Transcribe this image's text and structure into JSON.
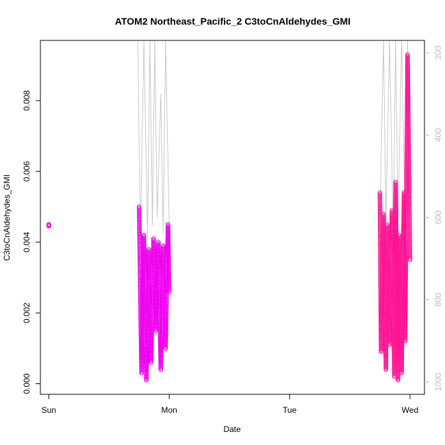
{
  "chart_data": {
    "type": "scatter",
    "title": "ATOM2 Northeast_Pacific_2 C3toCnAldehydes_GMI",
    "xlabel": "Date",
    "ylabel": "C3toCnAldehydes_GMI",
    "x_ticks": [
      "Sun",
      "Mon",
      "Tue",
      "Wed"
    ],
    "y_ticks": [
      "0.000",
      "0.002",
      "0.004",
      "0.006",
      "0.008"
    ],
    "y_tick_values": [
      0,
      0.002,
      0.004,
      0.006,
      0.008
    ],
    "y_range": [
      -0.0003,
      0.0097
    ],
    "x_range_days": [
      -0.07,
      3.12
    ],
    "right_axis": {
      "ticks": [
        "200",
        "400",
        "600",
        "800",
        "1000"
      ],
      "tick_values": [
        200,
        400,
        600,
        800,
        1000
      ],
      "range": [
        1030,
        170
      ],
      "color": "#bdbdbd"
    },
    "grid": false,
    "legend": "none",
    "colors": {
      "marker_first": "#ee00ee",
      "marker_second": "#ff1493",
      "pressure_line": "#c8c8c8"
    },
    "segments": [
      {
        "x": [
          0.0
        ],
        "y": [
          0.0045
        ]
      },
      {
        "x": [
          0.0,
          0.0
        ],
        "y": [
          0.00445,
          0.0045
        ]
      },
      {
        "x": [
          0.75,
          0.77,
          0.79,
          0.81,
          0.83,
          0.85,
          0.87,
          0.89,
          0.91,
          0.93,
          0.95,
          0.97,
          0.99,
          1.0
        ],
        "y": [
          0.005,
          0.0003,
          0.0042,
          0.0001,
          0.0038,
          0.0006,
          0.0041,
          0.0015,
          0.004,
          0.0004,
          0.0039,
          0.001,
          0.0045,
          0.0026
        ]
      },
      {
        "x": [
          2.75,
          2.76,
          2.78,
          2.8,
          2.81,
          2.83,
          2.85,
          2.87,
          2.88,
          2.9,
          2.91,
          2.93,
          2.95,
          2.96,
          2.98,
          3.0
        ],
        "y": [
          0.0054,
          0.0009,
          0.0048,
          0.0004,
          0.0045,
          0.0011,
          0.0049,
          0.0002,
          0.0057,
          0.0001,
          0.0042,
          0.0003,
          0.0054,
          0.0012,
          0.0093,
          0.0035
        ]
      }
    ],
    "pressure_series": {
      "x": [
        0.74,
        0.76,
        0.79,
        0.82,
        0.84,
        0.86,
        0.88,
        0.9,
        0.93,
        0.95,
        0.97,
        1.0,
        2.75,
        2.78,
        2.8,
        2.83,
        2.86,
        2.88,
        2.9,
        2.93,
        2.96,
        2.98,
        3.0
      ],
      "y": [
        120,
        660,
        150,
        650,
        140,
        620,
        130,
        600,
        300,
        640,
        160,
        620,
        600,
        140,
        610,
        150,
        640,
        130,
        620,
        140,
        630,
        160,
        600
      ]
    }
  }
}
